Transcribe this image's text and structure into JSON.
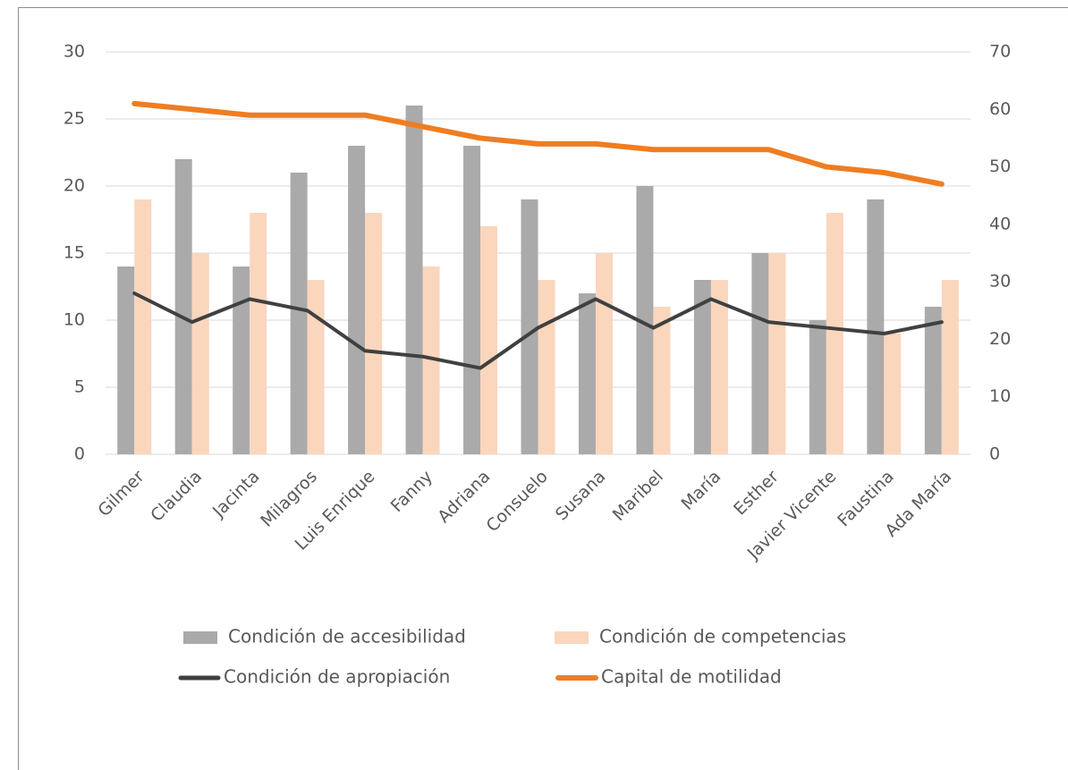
{
  "chart_data": {
    "type": "bar-line",
    "categories": [
      "Gilmer",
      "Claudia",
      "Jacinta",
      "Milagros",
      "Luis Enrique",
      "Fanny",
      "Adriana",
      "Consuelo",
      "Susana",
      "Maribel",
      "María",
      "Esther",
      "Javier Vicente",
      "Faustina",
      "Ada María"
    ],
    "series": [
      {
        "name": "Condición de accesibilidad",
        "type": "bar",
        "axis": "y",
        "color": "#aaaaaa",
        "values": [
          14,
          22,
          14,
          21,
          23,
          26,
          23,
          19,
          12,
          20,
          13,
          15,
          10,
          19,
          11
        ]
      },
      {
        "name": "Condición de competencias",
        "type": "bar",
        "axis": "y",
        "color": "#fad6bd",
        "values": [
          19,
          15,
          18,
          13,
          18,
          14,
          17,
          13,
          15,
          11,
          13,
          15,
          18,
          9,
          13
        ]
      },
      {
        "name": "Condición de apropiación",
        "type": "line",
        "axis": "y2",
        "color": "#404040",
        "values": [
          28,
          23,
          27,
          25,
          18,
          17,
          15,
          22,
          27,
          22,
          27,
          23,
          22,
          21,
          23
        ]
      },
      {
        "name": "Capital de motilidad",
        "type": "line",
        "axis": "y2",
        "color": "#ef7d22",
        "values": [
          61,
          60,
          59,
          59,
          59,
          57,
          55,
          54,
          54,
          53,
          53,
          53,
          50,
          49,
          47
        ]
      }
    ],
    "ylim": [
      0,
      30
    ],
    "yticks": [
      0,
      5,
      10,
      15,
      20,
      25,
      30
    ],
    "y2lim": [
      0,
      70
    ],
    "y2ticks": [
      0,
      10,
      20,
      30,
      40,
      50,
      60,
      70
    ],
    "grid": true,
    "legend": "bottom"
  }
}
